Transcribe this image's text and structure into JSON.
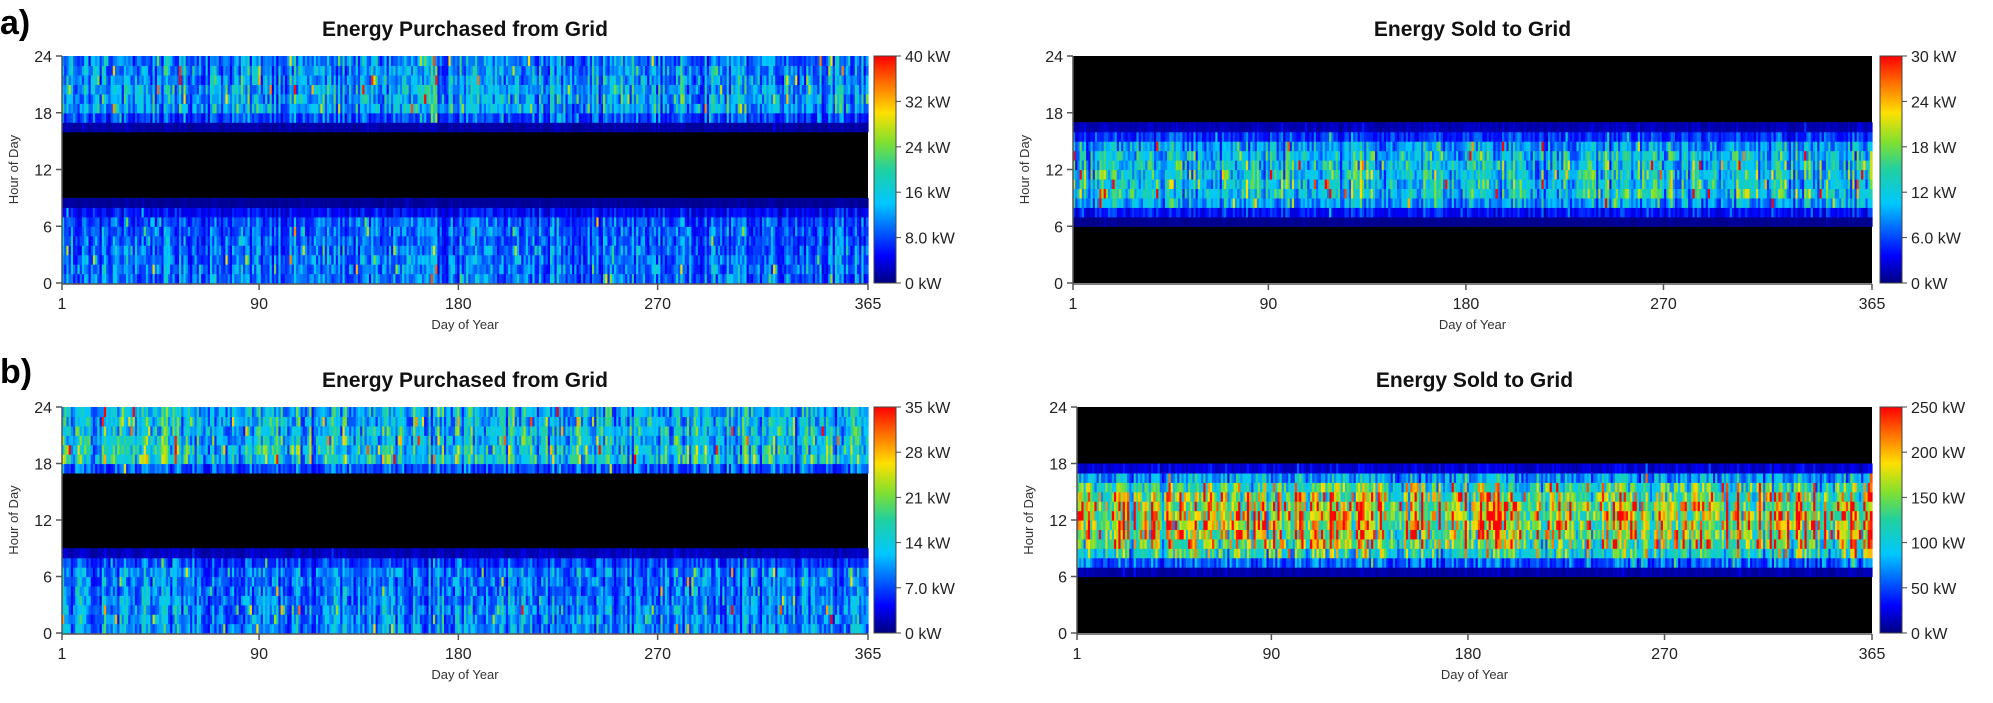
{
  "panels": [
    {
      "letter": "a)"
    },
    {
      "letter": "b)"
    }
  ],
  "chart_data": [
    {
      "type": "heatmap",
      "panel": "a)",
      "title": "Energy Purchased from Grid",
      "xlabel": "Day of Year",
      "ylabel": "Hour of Day",
      "xlim": [
        1,
        365
      ],
      "ylim": [
        0,
        24
      ],
      "xticks": [
        "1",
        "90",
        "180",
        "270",
        "365"
      ],
      "yticks": [
        "0",
        "6",
        "12",
        "18",
        "24"
      ],
      "colorbar": {
        "range": [
          0,
          40
        ],
        "labels": [
          "0 kW",
          "8.0 kW",
          "16 kW",
          "24 kW",
          "32 kW",
          "40 kW"
        ]
      },
      "profile_hours": [
        0,
        1,
        2,
        3,
        4,
        5,
        6,
        7,
        8,
        9,
        10,
        11,
        12,
        13,
        14,
        15,
        16,
        17,
        18,
        19,
        20,
        21,
        22,
        23,
        24
      ],
      "profile_kw": [
        10,
        10,
        10,
        10,
        9,
        9,
        9,
        8,
        2,
        0,
        0,
        0,
        0,
        0,
        0,
        0,
        0,
        3,
        13,
        13,
        13,
        12,
        12,
        11,
        11
      ],
      "zero_band_hours": [
        8.5,
        17
      ]
    },
    {
      "type": "heatmap",
      "panel": "a)",
      "title": "Energy Sold to Grid",
      "xlabel": "Day of Year",
      "ylabel": "Hour of Day",
      "xlim": [
        1,
        365
      ],
      "ylim": [
        0,
        24
      ],
      "xticks": [
        "1",
        "90",
        "180",
        "270",
        "365"
      ],
      "yticks": [
        "0",
        "6",
        "12",
        "18",
        "24"
      ],
      "colorbar": {
        "range": [
          0,
          30
        ],
        "labels": [
          "0 kW",
          "6.0 kW",
          "12 kW",
          "18 kW",
          "24 kW",
          "30 kW"
        ]
      },
      "profile_hours": [
        0,
        1,
        2,
        3,
        4,
        5,
        6,
        7,
        8,
        9,
        10,
        11,
        12,
        13,
        14,
        15,
        16,
        17,
        18,
        19,
        20,
        21,
        22,
        23,
        24
      ],
      "profile_kw": [
        0,
        0,
        0,
        0,
        0,
        0,
        0,
        1,
        7,
        12,
        12,
        12,
        12,
        11,
        11,
        7,
        3,
        0,
        0,
        0,
        0,
        0,
        0,
        0,
        0
      ],
      "active_band_hours": [
        8,
        16.5
      ]
    },
    {
      "type": "heatmap",
      "panel": "b)",
      "title": "Energy Purchased from Grid",
      "xlabel": "Day of Year",
      "ylabel": "Hour of Day",
      "xlim": [
        1,
        365
      ],
      "ylim": [
        0,
        24
      ],
      "xticks": [
        "1",
        "90",
        "180",
        "270",
        "365"
      ],
      "yticks": [
        "0",
        "6",
        "12",
        "18",
        "24"
      ],
      "colorbar": {
        "range": [
          0,
          35
        ],
        "labels": [
          "0 kW",
          "7.0 kW",
          "14 kW",
          "21 kW",
          "28 kW",
          "35 kW"
        ]
      },
      "profile_hours": [
        0,
        1,
        2,
        3,
        4,
        5,
        6,
        7,
        8,
        9,
        10,
        11,
        12,
        13,
        14,
        15,
        16,
        17,
        18,
        19,
        20,
        21,
        22,
        23,
        24
      ],
      "profile_kw": [
        10,
        10,
        10,
        10,
        9,
        9,
        9,
        9,
        4,
        0,
        0,
        0,
        0,
        0,
        0,
        0,
        0,
        0,
        15,
        14,
        14,
        13,
        13,
        12,
        12
      ],
      "zero_band_hours": [
        7.8,
        17.8
      ]
    },
    {
      "type": "heatmap",
      "panel": "b)",
      "title": "Energy Sold to Grid",
      "xlabel": "Day of Year",
      "ylabel": "Hour of Day",
      "xlim": [
        1,
        365
      ],
      "ylim": [
        0,
        24
      ],
      "xticks": [
        "1",
        "90",
        "180",
        "270",
        "365"
      ],
      "yticks": [
        "0",
        "6",
        "12",
        "18",
        "24"
      ],
      "colorbar": {
        "range": [
          0,
          250
        ],
        "labels": [
          "0 kW",
          "50 kW",
          "100 kW",
          "150 kW",
          "200 kW",
          "250 kW"
        ]
      },
      "profile_hours": [
        0,
        1,
        2,
        3,
        4,
        5,
        6,
        7,
        8,
        9,
        10,
        11,
        12,
        13,
        14,
        15,
        16,
        17,
        18,
        19,
        20,
        21,
        22,
        23,
        24
      ],
      "profile_kw": [
        0,
        0,
        0,
        0,
        0,
        0,
        0,
        20,
        90,
        140,
        160,
        170,
        175,
        170,
        160,
        140,
        110,
        40,
        0,
        0,
        0,
        0,
        0,
        0,
        0
      ],
      "active_band_hours": [
        7.5,
        17.5
      ]
    }
  ]
}
